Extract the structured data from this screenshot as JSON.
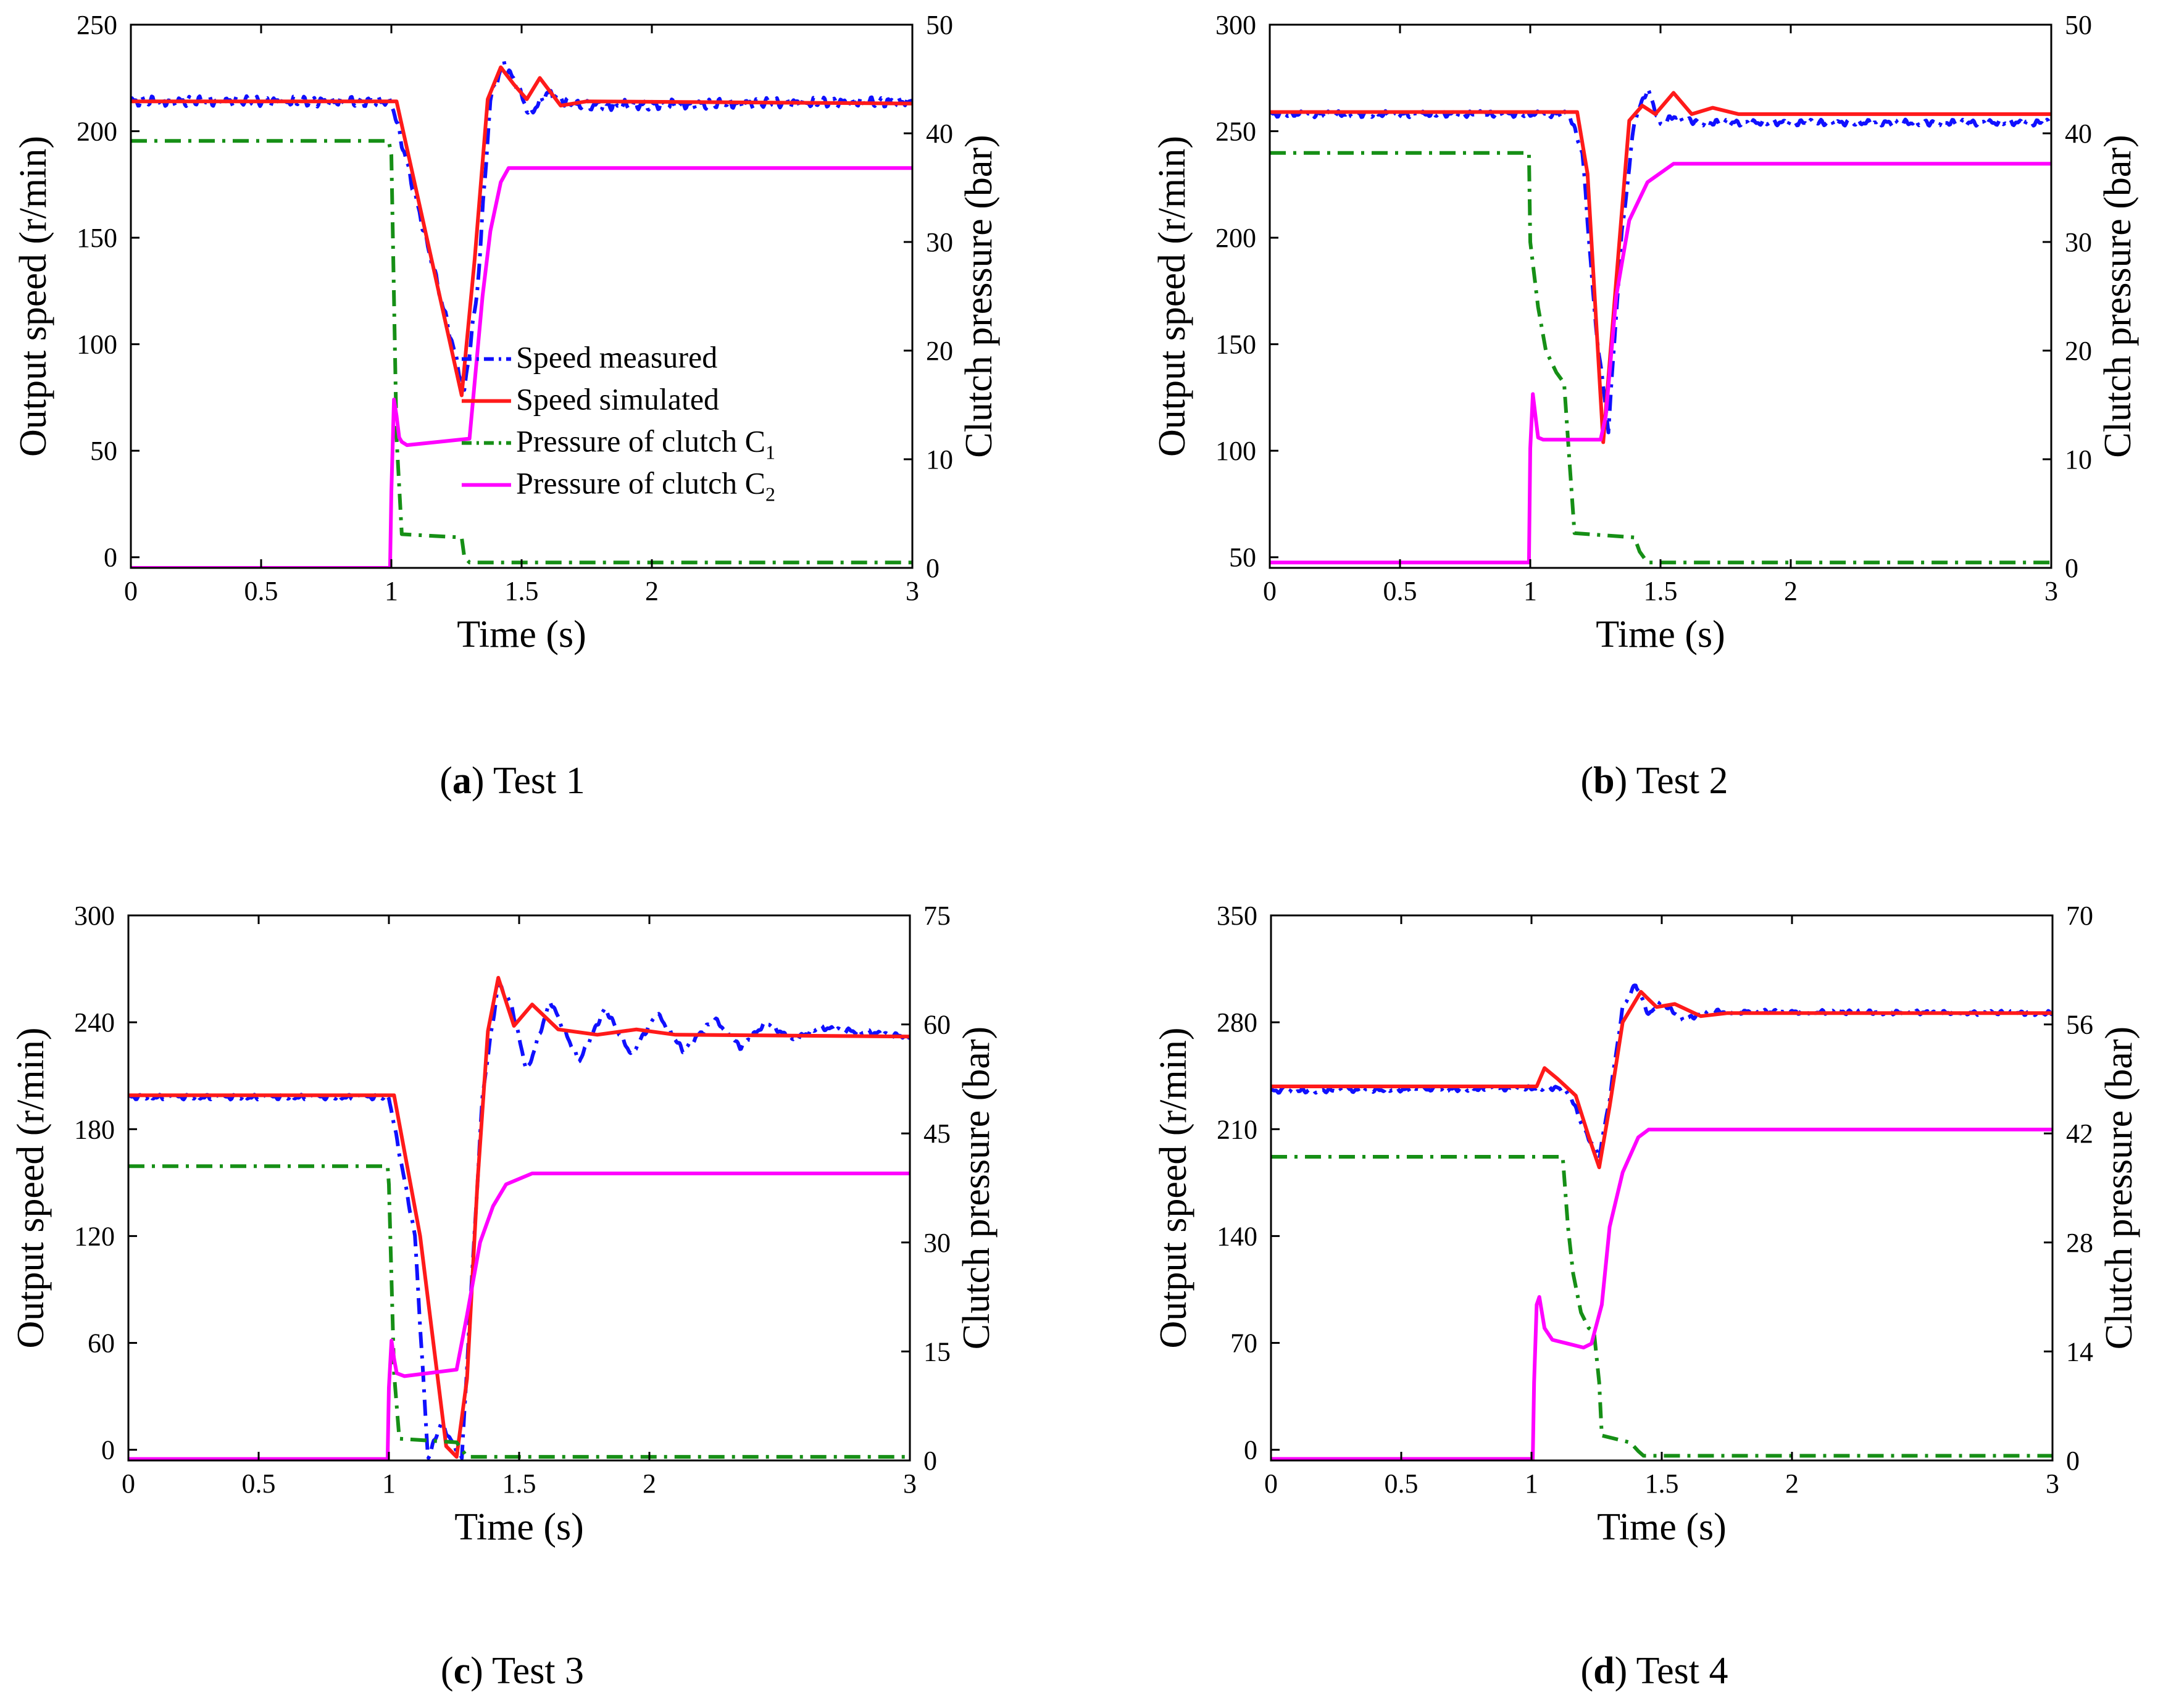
{
  "chart_data": [
    {
      "type": "line",
      "panel": "a",
      "caption": {
        "letter": "(a)",
        "label": " Test 1"
      },
      "xlabel": "Time (s)",
      "ylabel": "Output speed (r/min)",
      "y2label": "Clutch pressure (bar)",
      "xlim": [
        0,
        3
      ],
      "ylim": [
        -5,
        250
      ],
      "y2lim": [
        0,
        50
      ],
      "xticks": [
        0,
        0.5,
        1,
        1.5,
        2,
        3
      ],
      "xtick_labels": [
        "0",
        "0.5",
        "1",
        "1.5",
        "2",
        "3"
      ],
      "yticks": [
        0,
        50,
        100,
        150,
        200,
        250
      ],
      "y2ticks": [
        0,
        10,
        20,
        30,
        40,
        50
      ],
      "legend": {
        "position": "center-right",
        "entries": [
          {
            "name": "Speed measured",
            "sub": ""
          },
          {
            "name": "Speed simulated",
            "sub": ""
          },
          {
            "name": "Pressure of clutch C",
            "sub": "1"
          },
          {
            "name": "Pressure of clutch C",
            "sub": "2"
          }
        ]
      },
      "series": [
        {
          "name": "Speed measured",
          "axis": "left",
          "color": "#1010ff",
          "dash": "dashdot",
          "noise": 2.5,
          "x": [
            0,
            1.0,
            1.28,
            1.33,
            1.38,
            1.43,
            1.48,
            1.53,
            1.6,
            1.7,
            3.0
          ],
          "y": [
            214,
            214,
            78,
            125,
            215,
            232,
            222,
            208,
            218,
            212,
            214
          ]
        },
        {
          "name": "Speed simulated",
          "axis": "left",
          "color": "#ff1a1a",
          "dash": "solid",
          "noise": 0,
          "x": [
            0,
            1.02,
            1.27,
            1.32,
            1.37,
            1.42,
            1.47,
            1.52,
            1.57,
            1.65,
            1.75,
            3.0
          ],
          "y": [
            214,
            214,
            76,
            140,
            215,
            230,
            222,
            215,
            225,
            212,
            214,
            213
          ]
        },
        {
          "name": "Pressure of clutch C1",
          "axis": "right",
          "color": "#168f16",
          "dash": "dashdot",
          "noise": 0,
          "x": [
            0,
            0.99,
            1.0,
            1.02,
            1.04,
            1.27,
            1.28,
            1.3,
            3.0
          ],
          "y": [
            39.3,
            39.3,
            38,
            12,
            3.1,
            2.8,
            1.0,
            0.5,
            0.5
          ]
        },
        {
          "name": "Pressure of clutch C2",
          "axis": "right",
          "color": "#ff00ff",
          "dash": "solid",
          "noise": 0,
          "x": [
            0,
            0.995,
            1.0,
            1.01,
            1.02,
            1.03,
            1.04,
            1.06,
            1.3,
            1.35,
            1.38,
            1.42,
            1.45,
            3.0
          ],
          "y": [
            0,
            0,
            7,
            15.5,
            14,
            12,
            11.6,
            11.3,
            11.9,
            25,
            31,
            35.5,
            36.8,
            36.8
          ]
        }
      ]
    },
    {
      "type": "line",
      "panel": "b",
      "caption": {
        "letter": "(b)",
        "label": " Test 2"
      },
      "xlabel": "Time (s)",
      "ylabel": "Output speed (r/min)",
      "y2label": "Clutch pressure (bar)",
      "xlim": [
        0,
        3
      ],
      "ylim": [
        45,
        300
      ],
      "y2lim": [
        0,
        50
      ],
      "xticks": [
        0,
        0.5,
        1,
        1.5,
        2,
        3
      ],
      "xtick_labels": [
        "0",
        "0.5",
        "1",
        "1.5",
        "2",
        "3"
      ],
      "yticks": [
        50,
        100,
        150,
        200,
        250,
        300
      ],
      "y2ticks": [
        0,
        10,
        20,
        30,
        40,
        50
      ],
      "series": [
        {
          "name": "Speed measured",
          "axis": "left",
          "color": "#1010ff",
          "dash": "dashdot",
          "noise": 1.5,
          "x": [
            0,
            1.15,
            1.2,
            1.25,
            1.3,
            1.35,
            1.4,
            1.45,
            1.5,
            1.55,
            1.65,
            3.0
          ],
          "y": [
            258,
            258,
            240,
            160,
            110,
            200,
            255,
            270,
            253,
            257,
            254,
            254
          ]
        },
        {
          "name": "Speed simulated",
          "axis": "left",
          "color": "#ff1a1a",
          "dash": "solid",
          "noise": 0,
          "x": [
            0,
            1.18,
            1.22,
            1.28,
            1.33,
            1.38,
            1.43,
            1.48,
            1.55,
            1.62,
            1.7,
            1.8,
            3.0
          ],
          "y": [
            259,
            259,
            230,
            104,
            180,
            255,
            262,
            258,
            268,
            258,
            261,
            258,
            258
          ]
        },
        {
          "name": "Pressure of clutch C1",
          "axis": "right",
          "color": "#168f16",
          "dash": "dashdot",
          "noise": 0,
          "x": [
            0,
            0.995,
            1.0,
            1.03,
            1.06,
            1.1,
            1.13,
            1.15,
            1.17,
            1.4,
            1.42,
            1.45,
            3.0
          ],
          "y": [
            38.2,
            38.2,
            30,
            24,
            20,
            18,
            17,
            10,
            3.2,
            2.8,
            1.5,
            0.5,
            0.5
          ]
        },
        {
          "name": "Pressure of clutch C2",
          "axis": "right",
          "color": "#ff00ff",
          "dash": "solid",
          "noise": 0,
          "x": [
            0,
            0.995,
            1.0,
            1.01,
            1.02,
            1.03,
            1.05,
            1.27,
            1.29,
            1.33,
            1.38,
            1.45,
            1.55,
            3.0
          ],
          "y": [
            0.5,
            0.5,
            11,
            16,
            14,
            12,
            11.8,
            11.8,
            14,
            25,
            32,
            35.5,
            37.2,
            37.2
          ]
        }
      ]
    },
    {
      "type": "line",
      "panel": "c",
      "caption": {
        "letter": "(c)",
        "label": " Test 3"
      },
      "xlabel": "Time (s)",
      "ylabel": "Output speed (r/min)",
      "y2label": "Clutch pressure (bar)",
      "xlim": [
        0,
        3
      ],
      "ylim": [
        -6,
        300
      ],
      "y2lim": [
        0,
        75
      ],
      "xticks": [
        0,
        0.5,
        1,
        1.5,
        2,
        3
      ],
      "xtick_labels": [
        "0",
        "0.5",
        "1",
        "1.5",
        "2",
        "3"
      ],
      "yticks": [
        0,
        60,
        120,
        180,
        240,
        300
      ],
      "y2ticks": [
        0,
        15,
        30,
        45,
        60,
        75
      ],
      "series": [
        {
          "name": "Speed measured",
          "axis": "left",
          "color": "#1010ff",
          "dash": "dashdot",
          "noise": 1.5,
          "x": [
            0,
            1.0,
            1.1,
            1.15,
            1.2,
            1.28,
            1.32,
            1.36,
            1.42,
            1.47,
            1.53,
            1.62,
            1.73,
            1.83,
            1.93,
            2.03,
            2.13,
            2.25,
            2.35,
            2.45,
            2.55,
            2.65,
            3.0
          ],
          "y": [
            198,
            198,
            120,
            -5,
            15,
            -5,
            100,
            200,
            262,
            250,
            212,
            252,
            218,
            248,
            222,
            245,
            224,
            242,
            226,
            240,
            230,
            237,
            232
          ]
        },
        {
          "name": "Speed simulated",
          "axis": "left",
          "color": "#ff1a1a",
          "dash": "solid",
          "noise": 0,
          "x": [
            0,
            1.02,
            1.12,
            1.22,
            1.26,
            1.3,
            1.34,
            1.38,
            1.42,
            1.48,
            1.55,
            1.65,
            1.8,
            1.95,
            2.1,
            3.0
          ],
          "y": [
            199,
            199,
            120,
            2,
            -4,
            40,
            150,
            235,
            265,
            238,
            250,
            236,
            233,
            236,
            233,
            232
          ]
        },
        {
          "name": "Pressure of clutch C1",
          "axis": "right",
          "color": "#168f16",
          "dash": "dashdot",
          "noise": 0,
          "x": [
            0,
            0.995,
            1.0,
            1.02,
            1.04,
            1.26,
            1.28,
            1.3,
            3.0
          ],
          "y": [
            40.5,
            40.5,
            38,
            12,
            3,
            2.5,
            1.5,
            0.5,
            0.5
          ]
        },
        {
          "name": "Pressure of clutch C2",
          "axis": "right",
          "color": "#ff00ff",
          "dash": "solid",
          "noise": 0,
          "x": [
            0,
            0.995,
            1.0,
            1.01,
            1.02,
            1.03,
            1.06,
            1.26,
            1.3,
            1.35,
            1.4,
            1.45,
            1.55,
            3.0
          ],
          "y": [
            0.2,
            0.2,
            10,
            16.5,
            14,
            12,
            11.6,
            12.5,
            20,
            30,
            35,
            38,
            39.5,
            39.5
          ]
        }
      ]
    },
    {
      "type": "line",
      "panel": "d",
      "caption": {
        "letter": "(d)",
        "label": " Test 4"
      },
      "xlabel": "Time (s)",
      "ylabel": "Output speed (r/min)",
      "y2label": "Clutch pressure (bar)",
      "xlim": [
        0,
        3
      ],
      "ylim": [
        -7,
        350
      ],
      "y2lim": [
        0,
        70
      ],
      "xticks": [
        0,
        0.5,
        1,
        1.5,
        2,
        3
      ],
      "xtick_labels": [
        "0",
        "0.5",
        "1",
        "1.5",
        "2",
        "3"
      ],
      "yticks": [
        0,
        70,
        140,
        210,
        280,
        350
      ],
      "y2ticks": [
        0,
        14,
        28,
        42,
        56,
        70
      ],
      "series": [
        {
          "name": "Speed measured",
          "axis": "left",
          "color": "#1010ff",
          "dash": "dashdot",
          "noise": 1.5,
          "x": [
            0,
            1.1,
            1.15,
            1.2,
            1.26,
            1.3,
            1.35,
            1.4,
            1.45,
            1.5,
            1.58,
            1.7,
            3.0
          ],
          "y": [
            235,
            237,
            232,
            210,
            192,
            230,
            290,
            305,
            285,
            293,
            282,
            287,
            286
          ]
        },
        {
          "name": "Speed simulated",
          "axis": "left",
          "color": "#ff1a1a",
          "dash": "solid",
          "noise": 0,
          "x": [
            0,
            1.02,
            1.05,
            1.1,
            1.17,
            1.22,
            1.26,
            1.3,
            1.35,
            1.42,
            1.48,
            1.55,
            1.65,
            1.75,
            3.0
          ],
          "y": [
            238,
            238,
            250,
            243,
            232,
            205,
            185,
            225,
            280,
            300,
            290,
            292,
            284,
            286,
            286
          ]
        },
        {
          "name": "Pressure of clutch C1",
          "axis": "right",
          "color": "#168f16",
          "dash": "dashdot",
          "noise": 0,
          "x": [
            0,
            1.12,
            1.14,
            1.16,
            1.19,
            1.22,
            1.24,
            1.26,
            1.27,
            1.38,
            1.41,
            1.43,
            3.0
          ],
          "y": [
            39,
            39,
            30,
            24,
            19,
            17,
            16.5,
            10,
            3.2,
            2.3,
            1.2,
            0.6,
            0.6
          ]
        },
        {
          "name": "Pressure of clutch C2",
          "axis": "right",
          "color": "#ff00ff",
          "dash": "solid",
          "noise": 0,
          "x": [
            0,
            1.005,
            1.01,
            1.02,
            1.03,
            1.05,
            1.08,
            1.2,
            1.23,
            1.27,
            1.3,
            1.35,
            1.41,
            1.45,
            3.0
          ],
          "y": [
            0.2,
            0.2,
            10,
            20,
            21,
            17,
            15.5,
            14.5,
            15,
            20,
            30,
            37,
            41.5,
            42.5,
            42.5
          ]
        }
      ]
    }
  ]
}
